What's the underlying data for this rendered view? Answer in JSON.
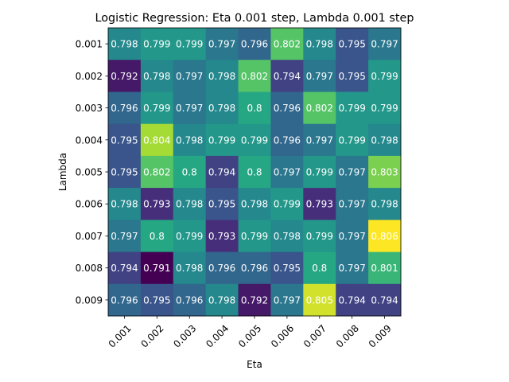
{
  "chart_data": {
    "type": "heatmap",
    "title": "Logistic Regression: Eta 0.001 step, Lambda 0.001 step",
    "xlabel": "Eta",
    "ylabel": "Lambda",
    "x_categories": [
      "0.001",
      "0.002",
      "0.003",
      "0.004",
      "0.005",
      "0.006",
      "0.007",
      "0.008",
      "0.009"
    ],
    "y_categories": [
      "0.001",
      "0.002",
      "0.003",
      "0.004",
      "0.005",
      "0.006",
      "0.007",
      "0.008",
      "0.009"
    ],
    "values": [
      [
        0.798,
        0.799,
        0.799,
        0.797,
        0.796,
        0.802,
        0.798,
        0.795,
        0.797
      ],
      [
        0.792,
        0.798,
        0.797,
        0.798,
        0.802,
        0.794,
        0.797,
        0.795,
        0.799
      ],
      [
        0.796,
        0.799,
        0.797,
        0.798,
        0.8,
        0.796,
        0.802,
        0.799,
        0.799
      ],
      [
        0.795,
        0.804,
        0.798,
        0.799,
        0.799,
        0.796,
        0.797,
        0.799,
        0.798
      ],
      [
        0.795,
        0.802,
        0.8,
        0.794,
        0.8,
        0.797,
        0.799,
        0.797,
        0.803
      ],
      [
        0.798,
        0.793,
        0.798,
        0.795,
        0.798,
        0.799,
        0.793,
        0.797,
        0.798
      ],
      [
        0.797,
        0.8,
        0.799,
        0.793,
        0.799,
        0.798,
        0.799,
        0.797,
        0.806
      ],
      [
        0.794,
        0.791,
        0.798,
        0.796,
        0.796,
        0.795,
        0.8,
        0.797,
        0.801
      ],
      [
        0.796,
        0.795,
        0.796,
        0.798,
        0.792,
        0.797,
        0.805,
        0.794,
        0.794
      ]
    ],
    "labels": [
      [
        "0.798",
        "0.799",
        "0.799",
        "0.797",
        "0.796",
        "0.802",
        "0.798",
        "0.795",
        "0.797"
      ],
      [
        "0.792",
        "0.798",
        "0.797",
        "0.798",
        "0.802",
        "0.794",
        "0.797",
        "0.795",
        "0.799"
      ],
      [
        "0.796",
        "0.799",
        "0.797",
        "0.798",
        "0.8",
        "0.796",
        "0.802",
        "0.799",
        "0.799"
      ],
      [
        "0.795",
        "0.804",
        "0.798",
        "0.799",
        "0.799",
        "0.796",
        "0.797",
        "0.799",
        "0.798"
      ],
      [
        "0.795",
        "0.802",
        "0.8",
        "0.794",
        "0.8",
        "0.797",
        "0.799",
        "0.797",
        "0.803"
      ],
      [
        "0.798",
        "0.793",
        "0.798",
        "0.795",
        "0.798",
        "0.799",
        "0.793",
        "0.797",
        "0.798"
      ],
      [
        "0.797",
        "0.8",
        "0.799",
        "0.793",
        "0.799",
        "0.798",
        "0.799",
        "0.797",
        "0.806"
      ],
      [
        "0.794",
        "0.791",
        "0.798",
        "0.796",
        "0.796",
        "0.795",
        "0.8",
        "0.797",
        "0.801"
      ],
      [
        "0.796",
        "0.795",
        "0.796",
        "0.798",
        "0.792",
        "0.797",
        "0.805",
        "0.794",
        "0.794"
      ]
    ],
    "colormap": "viridis",
    "vmin": 0.791,
    "vmax": 0.806,
    "label_color": "#ffffff",
    "grid": false
  }
}
